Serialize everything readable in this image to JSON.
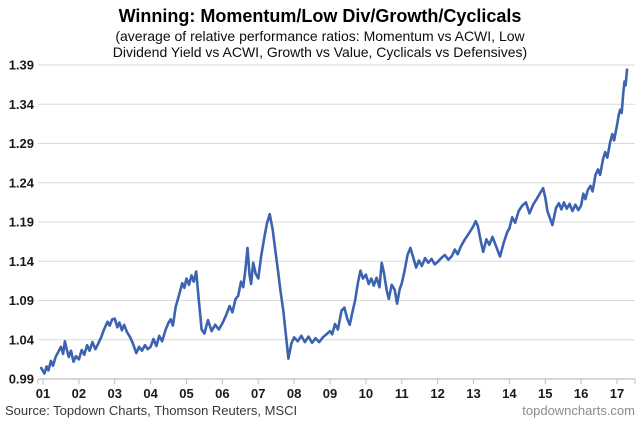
{
  "footer": {
    "source": "Source: Topdown Charts, Thomson Reuters, MSCI",
    "website": "topdowncharts.com"
  },
  "chart_data": {
    "type": "line",
    "title": "Winning: Momentum/Low Div/Growth/Cyclicals",
    "subtitle_line1": "(average of relative performance ratios: Momentum vs ACWI, Low",
    "subtitle_line2": "Dividend Yield vs ACWI, Growth vs Value, Cyclicals vs Defensives)",
    "xlabel": "",
    "ylabel": "",
    "ylim": [
      0.99,
      1.39
    ],
    "xlim": [
      2000.86,
      2017.5
    ],
    "grid": "horizontal",
    "legend": "none",
    "y_ticks": [
      0.99,
      1.04,
      1.09,
      1.14,
      1.19,
      1.24,
      1.29,
      1.34,
      1.39
    ],
    "x_tick_labels": [
      "01",
      "02",
      "03",
      "04",
      "05",
      "06",
      "07",
      "08",
      "09",
      "10",
      "11",
      "12",
      "13",
      "14",
      "15",
      "16",
      "17"
    ],
    "x_tick_start_year": 2001,
    "colors": {
      "line": "#3c63b0",
      "grid": "#d9d9d9",
      "axis": "#bfbfbf",
      "tick_label": "#1a1a1a"
    },
    "series": [
      {
        "name": "average of relative performance ratios",
        "points": [
          [
            2000.95,
            1.004
          ],
          [
            2001.04,
            0.997
          ],
          [
            2001.1,
            1.006
          ],
          [
            2001.15,
            1.001
          ],
          [
            2001.22,
            1.013
          ],
          [
            2001.28,
            1.007
          ],
          [
            2001.35,
            1.018
          ],
          [
            2001.42,
            1.024
          ],
          [
            2001.5,
            1.031
          ],
          [
            2001.56,
            1.022
          ],
          [
            2001.61,
            1.038
          ],
          [
            2001.66,
            1.028
          ],
          [
            2001.72,
            1.018
          ],
          [
            2001.78,
            1.026
          ],
          [
            2001.85,
            1.012
          ],
          [
            2001.92,
            1.019
          ],
          [
            2002.0,
            1.015
          ],
          [
            2002.08,
            1.027
          ],
          [
            2002.15,
            1.021
          ],
          [
            2002.23,
            1.033
          ],
          [
            2002.3,
            1.026
          ],
          [
            2002.38,
            1.037
          ],
          [
            2002.46,
            1.028
          ],
          [
            2002.54,
            1.035
          ],
          [
            2002.62,
            1.043
          ],
          [
            2002.7,
            1.053
          ],
          [
            2002.8,
            1.063
          ],
          [
            2002.86,
            1.058
          ],
          [
            2002.93,
            1.066
          ],
          [
            2003.0,
            1.067
          ],
          [
            2003.07,
            1.056
          ],
          [
            2003.13,
            1.062
          ],
          [
            2003.2,
            1.052
          ],
          [
            2003.26,
            1.059
          ],
          [
            2003.34,
            1.05
          ],
          [
            2003.42,
            1.044
          ],
          [
            2003.5,
            1.036
          ],
          [
            2003.6,
            1.023
          ],
          [
            2003.68,
            1.031
          ],
          [
            2003.76,
            1.026
          ],
          [
            2003.84,
            1.033
          ],
          [
            2003.92,
            1.028
          ],
          [
            2004.0,
            1.031
          ],
          [
            2004.08,
            1.041
          ],
          [
            2004.16,
            1.032
          ],
          [
            2004.24,
            1.045
          ],
          [
            2004.32,
            1.038
          ],
          [
            2004.42,
            1.053
          ],
          [
            2004.5,
            1.062
          ],
          [
            2004.56,
            1.066
          ],
          [
            2004.62,
            1.058
          ],
          [
            2004.7,
            1.082
          ],
          [
            2004.8,
            1.098
          ],
          [
            2004.88,
            1.112
          ],
          [
            2004.94,
            1.106
          ],
          [
            2005.0,
            1.118
          ],
          [
            2005.07,
            1.11
          ],
          [
            2005.14,
            1.122
          ],
          [
            2005.2,
            1.114
          ],
          [
            2005.27,
            1.127
          ],
          [
            2005.34,
            1.092
          ],
          [
            2005.42,
            1.053
          ],
          [
            2005.5,
            1.048
          ],
          [
            2005.6,
            1.065
          ],
          [
            2005.7,
            1.051
          ],
          [
            2005.8,
            1.059
          ],
          [
            2005.9,
            1.053
          ],
          [
            2006.0,
            1.061
          ],
          [
            2006.1,
            1.071
          ],
          [
            2006.2,
            1.083
          ],
          [
            2006.28,
            1.075
          ],
          [
            2006.37,
            1.092
          ],
          [
            2006.44,
            1.096
          ],
          [
            2006.52,
            1.114
          ],
          [
            2006.58,
            1.107
          ],
          [
            2006.64,
            1.128
          ],
          [
            2006.7,
            1.157
          ],
          [
            2006.76,
            1.122
          ],
          [
            2006.8,
            1.111
          ],
          [
            2006.86,
            1.138
          ],
          [
            2006.93,
            1.124
          ],
          [
            2007.0,
            1.118
          ],
          [
            2007.08,
            1.146
          ],
          [
            2007.16,
            1.168
          ],
          [
            2007.24,
            1.188
          ],
          [
            2007.32,
            1.2
          ],
          [
            2007.4,
            1.181
          ],
          [
            2007.47,
            1.156
          ],
          [
            2007.55,
            1.128
          ],
          [
            2007.62,
            1.102
          ],
          [
            2007.7,
            1.076
          ],
          [
            2007.77,
            1.046
          ],
          [
            2007.84,
            1.016
          ],
          [
            2007.92,
            1.035
          ],
          [
            2008.0,
            1.043
          ],
          [
            2008.1,
            1.038
          ],
          [
            2008.2,
            1.045
          ],
          [
            2008.3,
            1.037
          ],
          [
            2008.4,
            1.044
          ],
          [
            2008.5,
            1.036
          ],
          [
            2008.6,
            1.042
          ],
          [
            2008.7,
            1.037
          ],
          [
            2008.8,
            1.043
          ],
          [
            2008.9,
            1.047
          ],
          [
            2009.0,
            1.051
          ],
          [
            2009.06,
            1.047
          ],
          [
            2009.14,
            1.06
          ],
          [
            2009.22,
            1.053
          ],
          [
            2009.32,
            1.077
          ],
          [
            2009.4,
            1.081
          ],
          [
            2009.48,
            1.067
          ],
          [
            2009.55,
            1.059
          ],
          [
            2009.62,
            1.074
          ],
          [
            2009.7,
            1.09
          ],
          [
            2009.78,
            1.113
          ],
          [
            2009.85,
            1.128
          ],
          [
            2009.92,
            1.118
          ],
          [
            2010.0,
            1.123
          ],
          [
            2010.08,
            1.111
          ],
          [
            2010.15,
            1.118
          ],
          [
            2010.22,
            1.109
          ],
          [
            2010.3,
            1.119
          ],
          [
            2010.38,
            1.107
          ],
          [
            2010.44,
            1.138
          ],
          [
            2010.5,
            1.126
          ],
          [
            2010.58,
            1.103
          ],
          [
            2010.64,
            1.092
          ],
          [
            2010.72,
            1.11
          ],
          [
            2010.8,
            1.104
          ],
          [
            2010.87,
            1.086
          ],
          [
            2010.94,
            1.104
          ],
          [
            2011.0,
            1.112
          ],
          [
            2011.08,
            1.128
          ],
          [
            2011.16,
            1.148
          ],
          [
            2011.24,
            1.157
          ],
          [
            2011.32,
            1.145
          ],
          [
            2011.4,
            1.132
          ],
          [
            2011.48,
            1.141
          ],
          [
            2011.56,
            1.134
          ],
          [
            2011.65,
            1.144
          ],
          [
            2011.74,
            1.138
          ],
          [
            2011.83,
            1.143
          ],
          [
            2011.92,
            1.136
          ],
          [
            2012.0,
            1.139
          ],
          [
            2012.1,
            1.144
          ],
          [
            2012.2,
            1.148
          ],
          [
            2012.3,
            1.142
          ],
          [
            2012.4,
            1.147
          ],
          [
            2012.48,
            1.155
          ],
          [
            2012.56,
            1.149
          ],
          [
            2012.65,
            1.159
          ],
          [
            2012.76,
            1.168
          ],
          [
            2012.88,
            1.176
          ],
          [
            2013.0,
            1.185
          ],
          [
            2013.06,
            1.191
          ],
          [
            2013.12,
            1.185
          ],
          [
            2013.2,
            1.166
          ],
          [
            2013.27,
            1.152
          ],
          [
            2013.36,
            1.168
          ],
          [
            2013.44,
            1.161
          ],
          [
            2013.53,
            1.171
          ],
          [
            2013.63,
            1.159
          ],
          [
            2013.74,
            1.146
          ],
          [
            2013.84,
            1.163
          ],
          [
            2013.94,
            1.177
          ],
          [
            2014.0,
            1.182
          ],
          [
            2014.08,
            1.196
          ],
          [
            2014.16,
            1.189
          ],
          [
            2014.26,
            1.204
          ],
          [
            2014.36,
            1.211
          ],
          [
            2014.46,
            1.215
          ],
          [
            2014.56,
            1.201
          ],
          [
            2014.66,
            1.212
          ],
          [
            2014.76,
            1.219
          ],
          [
            2014.86,
            1.227
          ],
          [
            2014.94,
            1.233
          ],
          [
            2015.0,
            1.221
          ],
          [
            2015.06,
            1.204
          ],
          [
            2015.13,
            1.195
          ],
          [
            2015.2,
            1.186
          ],
          [
            2015.3,
            1.208
          ],
          [
            2015.38,
            1.214
          ],
          [
            2015.45,
            1.206
          ],
          [
            2015.52,
            1.215
          ],
          [
            2015.6,
            1.207
          ],
          [
            2015.68,
            1.213
          ],
          [
            2015.76,
            1.204
          ],
          [
            2015.84,
            1.212
          ],
          [
            2015.92,
            1.205
          ],
          [
            2016.0,
            1.211
          ],
          [
            2016.06,
            1.226
          ],
          [
            2016.12,
            1.219
          ],
          [
            2016.19,
            1.231
          ],
          [
            2016.26,
            1.236
          ],
          [
            2016.32,
            1.229
          ],
          [
            2016.4,
            1.25
          ],
          [
            2016.47,
            1.257
          ],
          [
            2016.53,
            1.25
          ],
          [
            2016.61,
            1.27
          ],
          [
            2016.67,
            1.279
          ],
          [
            2016.73,
            1.272
          ],
          [
            2016.81,
            1.292
          ],
          [
            2016.87,
            1.302
          ],
          [
            2016.92,
            1.294
          ],
          [
            2017.0,
            1.313
          ],
          [
            2017.05,
            1.327
          ],
          [
            2017.09,
            1.333
          ],
          [
            2017.13,
            1.329
          ],
          [
            2017.17,
            1.352
          ],
          [
            2017.21,
            1.369
          ],
          [
            2017.24,
            1.364
          ],
          [
            2017.28,
            1.384
          ]
        ]
      }
    ]
  }
}
